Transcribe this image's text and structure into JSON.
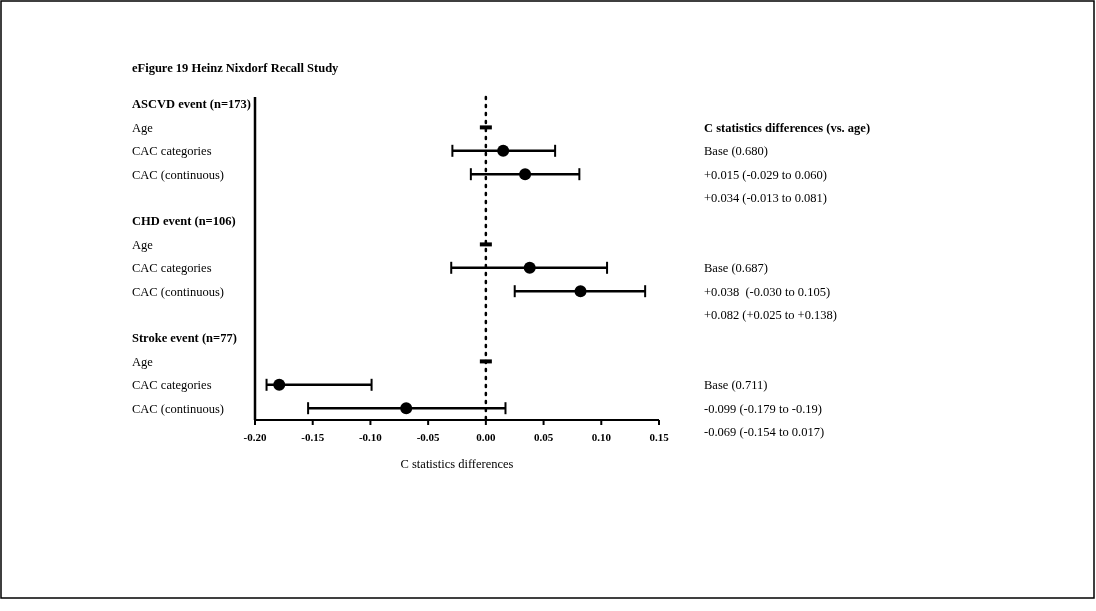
{
  "chart_data": {
    "type": "scatter",
    "orientation": "horizontal",
    "title": "eFigure 19 Heinz Nixdorf Recall Study",
    "xlabel": "C statistics differences",
    "categories": [
      "ASCVD event (n=173)",
      "Age",
      "CAC categories",
      "CAC (continuous)",
      null,
      "CHD event (n=106)",
      "Age",
      "CAC categories",
      "CAC (continuous)",
      null,
      "Stroke event (n=77)",
      "Age",
      "CAC categories",
      "CAC (continuous)"
    ],
    "series": [
      {
        "color": "#000000",
        "marker": "circle",
        "values": [
          null,
          null,
          0.015,
          0.034,
          null,
          null,
          null,
          0.038,
          0.082,
          null,
          null,
          null,
          -0.179,
          -0.069
        ],
        "errors": [
          null,
          null,
          [
            -0.029,
            0.06
          ],
          [
            -0.013,
            0.081
          ],
          null,
          null,
          null,
          [
            -0.03,
            0.105
          ],
          [
            0.025,
            0.138
          ],
          null,
          null,
          null,
          [
            -0.19,
            -0.099
          ],
          [
            -0.154,
            0.017
          ]
        ]
      },
      {
        "color": "#000000",
        "values": [
          null,
          0,
          null,
          null,
          null,
          null,
          0,
          null,
          null,
          null,
          null,
          0,
          null,
          null
        ]
      }
    ],
    "xlim": [
      -0.2,
      0.15
    ],
    "xticks": [
      {
        "value": -0.2,
        "label": "-0.20"
      },
      {
        "value": -0.15,
        "label": "-0.15"
      },
      {
        "value": -0.1,
        "label": "-0.10"
      },
      {
        "value": -0.05,
        "label": "-0.05"
      },
      {
        "value": 0,
        "label": "0.00"
      },
      {
        "value": 0.05,
        "label": "0.05"
      },
      {
        "value": 0.1,
        "label": "0.10"
      },
      {
        "value": 0.15,
        "label": "0.15"
      }
    ],
    "ref_lines": [
      {
        "axis": "x",
        "value": 0,
        "line_style": "dotted"
      }
    ],
    "annotations": [
      "C statistics differences (vs. age)",
      "Base (0.680)",
      "+0.015 (-0.029 to 0.060)",
      "+0.034 (-0.013 to 0.081)",
      "Base (0.687)",
      "+0.038  (-0.030 to 0.105)",
      "+0.082 (+0.025 to +0.138)",
      "Base (0.711)",
      "-0.099 (-0.179 to -0.19)",
      "-0.069 (-0.154 to 0.017)"
    ]
  }
}
